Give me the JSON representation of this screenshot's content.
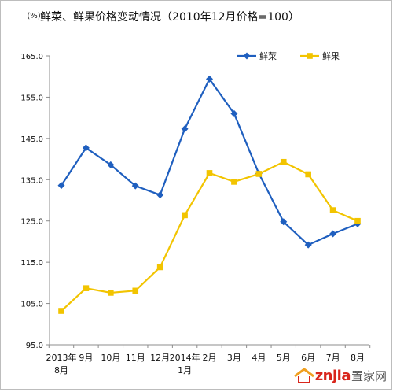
{
  "chart_data": {
    "type": "line",
    "title": "鲜菜、鲜果价格变动情况（2010年12月价格=100）",
    "y_unit": "(%)",
    "ylim": [
      95.0,
      165.0
    ],
    "y_ticks": [
      "165.0",
      "155.0",
      "145.0",
      "135.0",
      "125.0",
      "115.0",
      "105.0",
      "95.0"
    ],
    "y_tick_values": [
      165,
      155,
      145,
      135,
      125,
      115,
      105,
      95
    ],
    "categories": [
      [
        "2013年",
        "8月"
      ],
      [
        "9月"
      ],
      [
        "10月"
      ],
      [
        "11月"
      ],
      [
        "12月"
      ],
      [
        "2014年",
        "1月"
      ],
      [
        "2月"
      ],
      [
        "3月"
      ],
      [
        "4月"
      ],
      [
        "5月"
      ],
      [
        "6月"
      ],
      [
        "7月"
      ],
      [
        "8月"
      ]
    ],
    "series": [
      {
        "name": "鲜菜",
        "color": "#1f5fbf",
        "marker": "diamond",
        "values": [
          133.6,
          142.7,
          138.6,
          133.5,
          131.3,
          147.3,
          159.4,
          151.0,
          136.5,
          124.8,
          119.2,
          121.9,
          124.3
        ]
      },
      {
        "name": "鲜果",
        "color": "#f2c400",
        "marker": "square",
        "values": [
          103.2,
          108.7,
          107.6,
          108.1,
          113.8,
          126.4,
          136.6,
          134.5,
          136.4,
          139.3,
          136.3,
          127.6,
          125.0
        ]
      }
    ],
    "legend_position": "top-right",
    "grid": false
  },
  "watermark": {
    "latin": "znjia",
    "cn": "置家网"
  }
}
